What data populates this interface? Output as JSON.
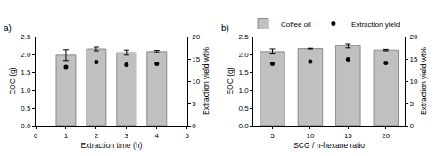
{
  "chart_data": [
    {
      "type": "bar",
      "annotations": [
        "a)"
      ],
      "xlabel": "Extraction time (h)",
      "ylabel": "EOC (g)",
      "y2label": "Extraction yield wt%",
      "x": [
        1,
        2,
        3,
        4
      ],
      "xlim": [
        0,
        5
      ],
      "xticks": [
        0,
        1,
        2,
        3,
        4,
        5
      ],
      "ylim": [
        0,
        2.5
      ],
      "yticks": [
        {
          "value": 0,
          "label": "0.0"
        },
        0.5,
        {
          "value": 1,
          "label": "1.0"
        },
        1.5,
        {
          "value": 2,
          "label": "2.0"
        },
        2.5
      ],
      "y2lim": [
        0,
        20
      ],
      "y2ticks": [
        0,
        5,
        10,
        15,
        20
      ],
      "series": [
        {
          "type": "bar",
          "color": "#c0c0c0",
          "values": [
            1.98,
            2.15,
            2.05,
            2.08
          ],
          "errors": [
            0.15,
            0.05,
            0.07,
            0.03
          ]
        },
        {
          "type": "scatter",
          "marker": "circle",
          "color": "#000000",
          "axis": "y2",
          "values": [
            13.2,
            14.3,
            13.7,
            13.9
          ]
        }
      ]
    },
    {
      "type": "bar",
      "annotations": [
        "b)"
      ],
      "xlabel": "SCG / n-hexane ratio",
      "ylabel": "EOC (g)",
      "y2label": "Extraction yield wt%",
      "categories": [
        "5",
        "10",
        "15",
        "20"
      ],
      "ylim": [
        0,
        2.5
      ],
      "yticks": [
        {
          "value": 0,
          "label": "0.0"
        },
        0.5,
        {
          "value": 1,
          "label": "1.0"
        },
        1.5,
        {
          "value": 2,
          "label": "2.0"
        },
        2.5
      ],
      "y2lim": [
        0,
        20
      ],
      "y2ticks": [
        0,
        5,
        10,
        15,
        20
      ],
      "legend": "top right",
      "series": [
        {
          "name": "Coffee oil",
          "type": "bar",
          "color": "#c0c0c0",
          "values": [
            2.08,
            2.16,
            2.24,
            2.12
          ],
          "errors": [
            0.07,
            0.01,
            0.06,
            0.02
          ]
        },
        {
          "name": "Extraction yield",
          "type": "scatter",
          "marker": "circle",
          "color": "#000000",
          "axis": "y2",
          "values": [
            13.9,
            14.4,
            14.9,
            14.1
          ]
        }
      ]
    }
  ]
}
